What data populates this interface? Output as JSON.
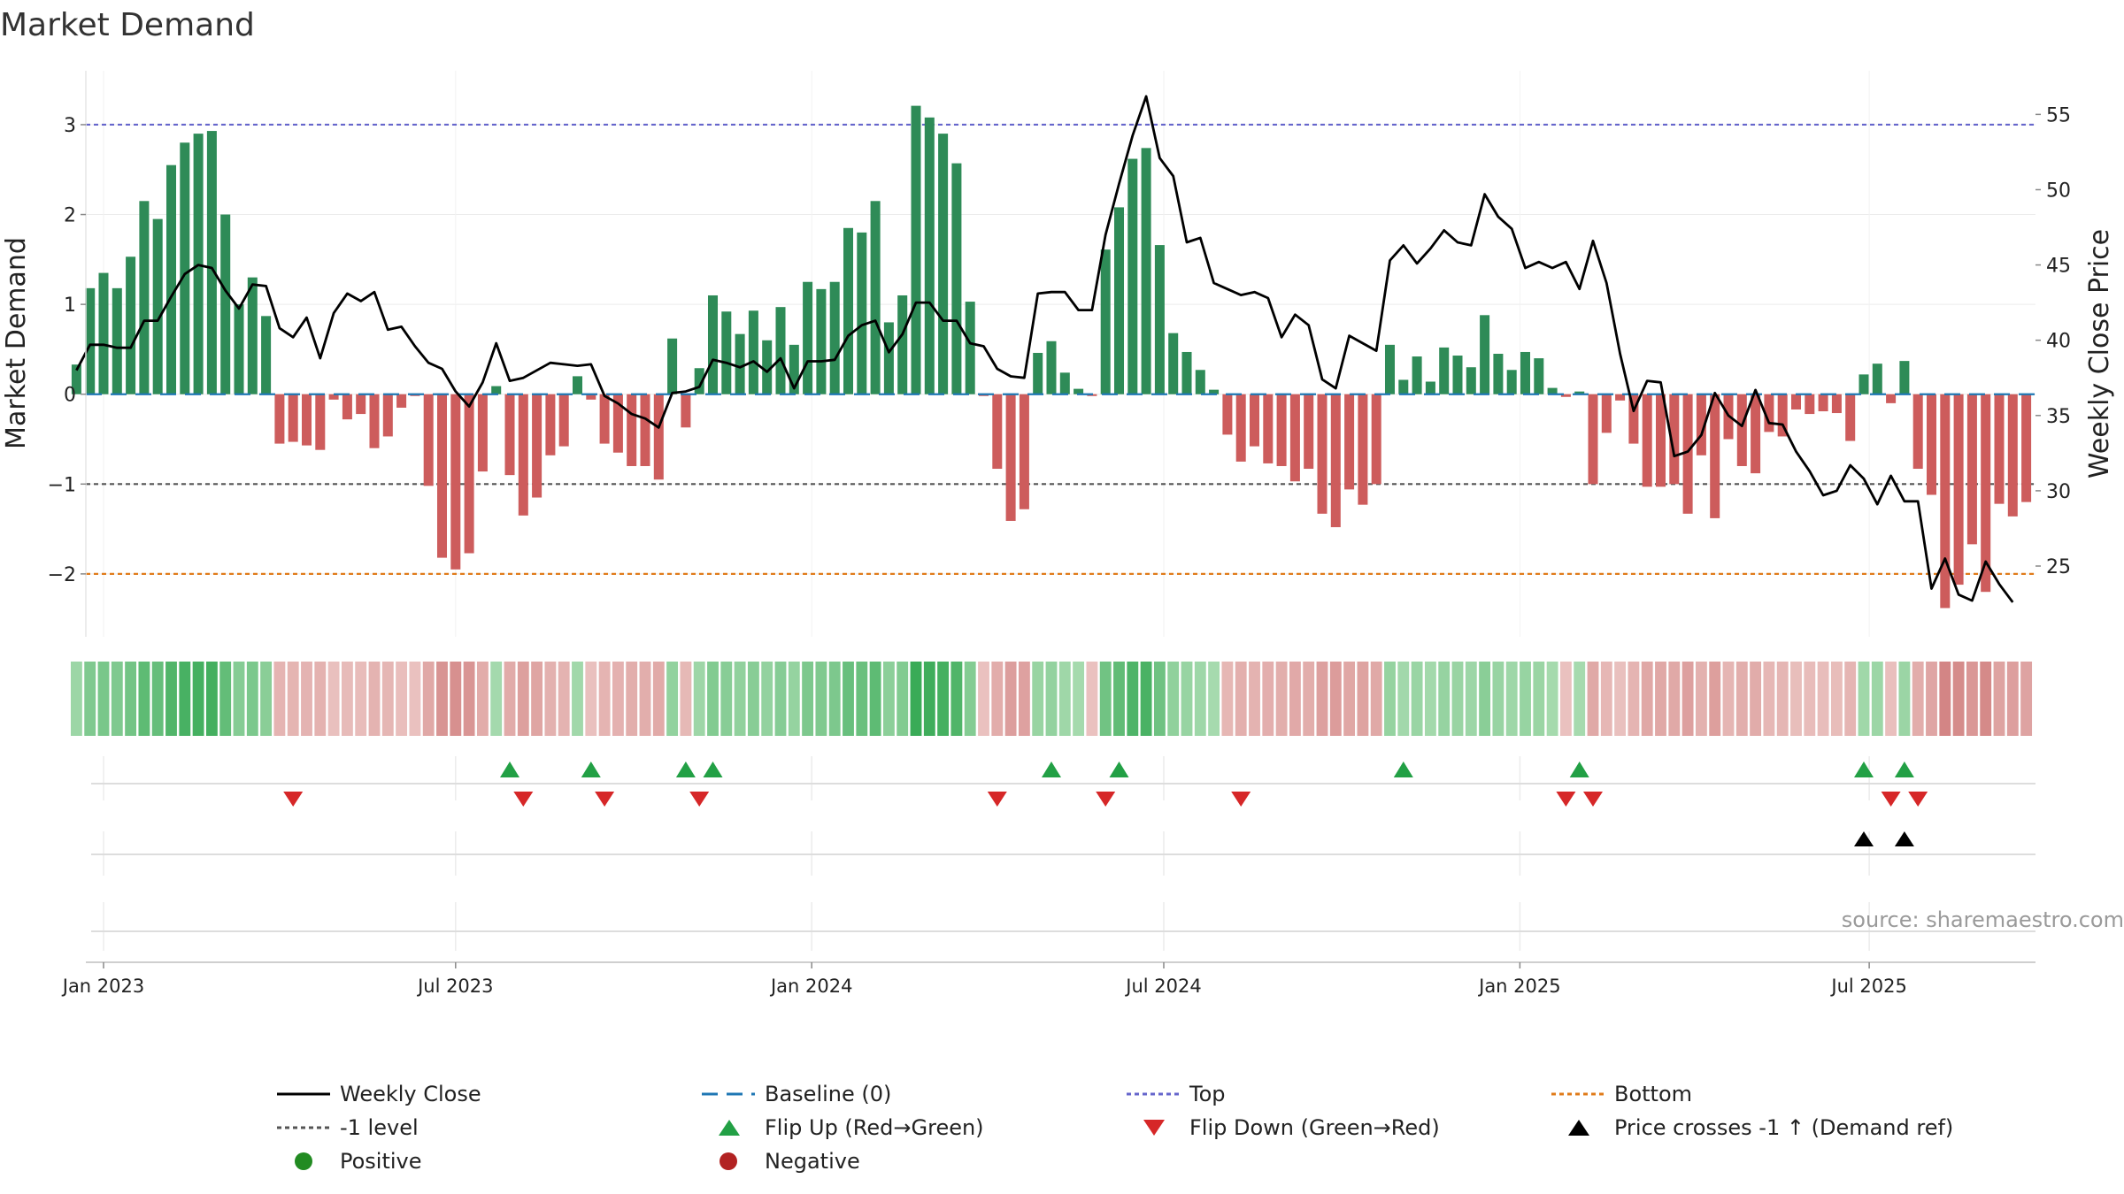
{
  "chart_data": {
    "type": "bar",
    "title": "Market Demand",
    "ylabel_left": "Market Demand",
    "ylabel_right": "Weekly Close Price",
    "ylim_left": [
      -2.7,
      3.6
    ],
    "yticks_left": [
      3,
      2,
      1,
      0,
      -1,
      -2
    ],
    "ytick_labels_left": [
      "3",
      "2",
      "1",
      "0",
      "−1",
      "−2"
    ],
    "ylim_right": [
      20.3,
      57.9
    ],
    "yticks_right": [
      55,
      50,
      45,
      40,
      35,
      30,
      25
    ],
    "ytick_labels_right": [
      "55",
      "50",
      "45",
      "40",
      "35",
      "30",
      "25"
    ],
    "x_start_week": -2,
    "x_ticks": [
      {
        "label": "Jan 2023",
        "week": 0
      },
      {
        "label": "Jul 2023",
        "week": 26
      },
      {
        "label": "Jan 2024",
        "week": 52.3
      },
      {
        "label": "Jul 2024",
        "week": 78.3
      },
      {
        "label": "Jan 2025",
        "week": 104.6
      },
      {
        "label": "Jul 2025",
        "week": 130.4
      }
    ],
    "reference_lines": [
      {
        "name": "Top",
        "value": 3,
        "color": "#6666cc"
      },
      {
        "name": "-1 level",
        "value": -1,
        "color": "#555555"
      },
      {
        "name": "Bottom",
        "value": -2,
        "color": "#e07b1a"
      },
      {
        "name": "Baseline (0)",
        "value": 0,
        "color": "#1f77b4"
      }
    ],
    "demand": [
      0.33,
      1.18,
      1.35,
      1.18,
      1.53,
      2.15,
      1.95,
      2.55,
      2.8,
      2.9,
      2.93,
      2.0,
      1.0,
      1.3,
      0.87,
      -0.55,
      -0.53,
      -0.57,
      -0.62,
      -0.06,
      -0.28,
      -0.22,
      -0.6,
      -0.47,
      -0.15,
      -0.02,
      -1.02,
      -1.82,
      -1.95,
      -1.77,
      -0.86,
      0.09,
      -0.9,
      -1.35,
      -1.15,
      -0.68,
      -0.58,
      0.2,
      -0.06,
      -0.55,
      -0.65,
      -0.8,
      -0.8,
      -0.95,
      0.62,
      -0.37,
      0.29,
      1.1,
      0.92,
      0.67,
      0.93,
      0.6,
      0.97,
      0.55,
      1.25,
      1.17,
      1.25,
      1.85,
      1.8,
      2.15,
      0.8,
      1.1,
      3.21,
      3.08,
      2.9,
      2.57,
      1.03,
      -0.02,
      -0.83,
      -1.41,
      -1.28,
      0.46,
      0.59,
      0.24,
      0.06,
      -0.02,
      1.61,
      2.08,
      2.62,
      2.74,
      1.66,
      0.68,
      0.47,
      0.27,
      0.05,
      -0.45,
      -0.75,
      -0.58,
      -0.77,
      -0.8,
      -0.97,
      -0.83,
      -1.33,
      -1.48,
      -1.06,
      -1.23,
      -1.0,
      0.55,
      0.16,
      0.42,
      0.14,
      0.52,
      0.43,
      0.3,
      0.88,
      0.45,
      0.27,
      0.47,
      0.4,
      0.07,
      -0.03,
      0.03,
      -1.0,
      -0.43,
      -0.07,
      -0.55,
      -1.03,
      -1.03,
      -1.0,
      -1.33,
      -0.68,
      -1.38,
      -0.5,
      -0.8,
      -0.88,
      -0.42,
      -0.47,
      -0.17,
      -0.22,
      -0.19,
      -0.21,
      -0.52,
      0.22,
      0.34,
      -0.1,
      0.37,
      -0.83,
      -1.12,
      -2.38,
      -2.12,
      -1.67,
      -2.2,
      -1.22,
      -1.36,
      -1.2
    ],
    "weekly_close": [
      38.0,
      39.7,
      39.7,
      39.5,
      39.5,
      41.3,
      41.3,
      42.9,
      44.4,
      45.0,
      44.8,
      43.3,
      42.1,
      43.7,
      43.6,
      40.8,
      40.2,
      41.5,
      38.8,
      41.8,
      43.1,
      42.6,
      43.2,
      40.7,
      40.9,
      39.6,
      38.5,
      38.1,
      36.6,
      35.6,
      37.2,
      39.8,
      37.3,
      37.5,
      38.0,
      38.5,
      38.4,
      38.3,
      38.4,
      36.3,
      35.8,
      35.1,
      34.8,
      34.2,
      36.5,
      36.6,
      36.9,
      38.7,
      38.5,
      38.2,
      38.6,
      37.9,
      38.8,
      36.8,
      38.6,
      38.6,
      38.7,
      40.3,
      41.0,
      41.3,
      39.2,
      40.4,
      42.5,
      42.5,
      41.3,
      41.3,
      39.8,
      39.6,
      38.1,
      37.6,
      37.5,
      43.1,
      43.2,
      43.2,
      42.0,
      42.0,
      47.0,
      50.4,
      53.6,
      56.2,
      52.1,
      50.9,
      46.5,
      46.8,
      43.8,
      43.4,
      43.0,
      43.2,
      42.8,
      40.2,
      41.7,
      41.0,
      37.4,
      36.8,
      40.3,
      39.8,
      39.3,
      45.3,
      46.3,
      45.1,
      46.1,
      47.3,
      46.5,
      46.3,
      49.7,
      48.2,
      47.4,
      44.8,
      45.2,
      44.8,
      45.2,
      43.4,
      46.6,
      43.8,
      39.1,
      35.3,
      37.3,
      37.2,
      32.3,
      32.6,
      33.7,
      36.5,
      35.0,
      34.3,
      36.7,
      34.5,
      34.4,
      32.6,
      31.3,
      29.7,
      30.0,
      31.7,
      30.8,
      29.1,
      31.0,
      29.3,
      29.3,
      23.5,
      25.5,
      23.1,
      22.7,
      25.3,
      23.8,
      22.6
    ],
    "flip_up_weeks": [
      30,
      36,
      43,
      45,
      70,
      75,
      96,
      109,
      130,
      133
    ],
    "flip_down_weeks": [
      14,
      31,
      37,
      44,
      66,
      74,
      84,
      108,
      110,
      132,
      134
    ],
    "price_cross_weeks": [
      130,
      133
    ]
  },
  "legend": {
    "items": [
      {
        "key": "close",
        "label": "Weekly Close"
      },
      {
        "key": "baseline",
        "label": "Baseline (0)"
      },
      {
        "key": "top",
        "label": "Top"
      },
      {
        "key": "bottom",
        "label": "Bottom"
      },
      {
        "key": "minus1",
        "label": "-1 level"
      },
      {
        "key": "flipup",
        "label": "Flip Up (Red→Green)"
      },
      {
        "key": "flipdown",
        "label": "Flip Down (Green→Red)"
      },
      {
        "key": "cross",
        "label": "Price crosses -1 ↑ (Demand ref)"
      },
      {
        "key": "positive",
        "label": "Positive"
      },
      {
        "key": "negative",
        "label": "Negative"
      }
    ]
  },
  "source_text": "source: sharemaestro.com",
  "colors": {
    "positive_bar": "#2e8b57",
    "negative_bar": "#cd5c5c",
    "close_line": "#000000",
    "flip_up": "#22a045",
    "flip_down": "#d62728",
    "cross": "#000000",
    "positive_dot": "#228b22",
    "negative_dot": "#b22222"
  }
}
